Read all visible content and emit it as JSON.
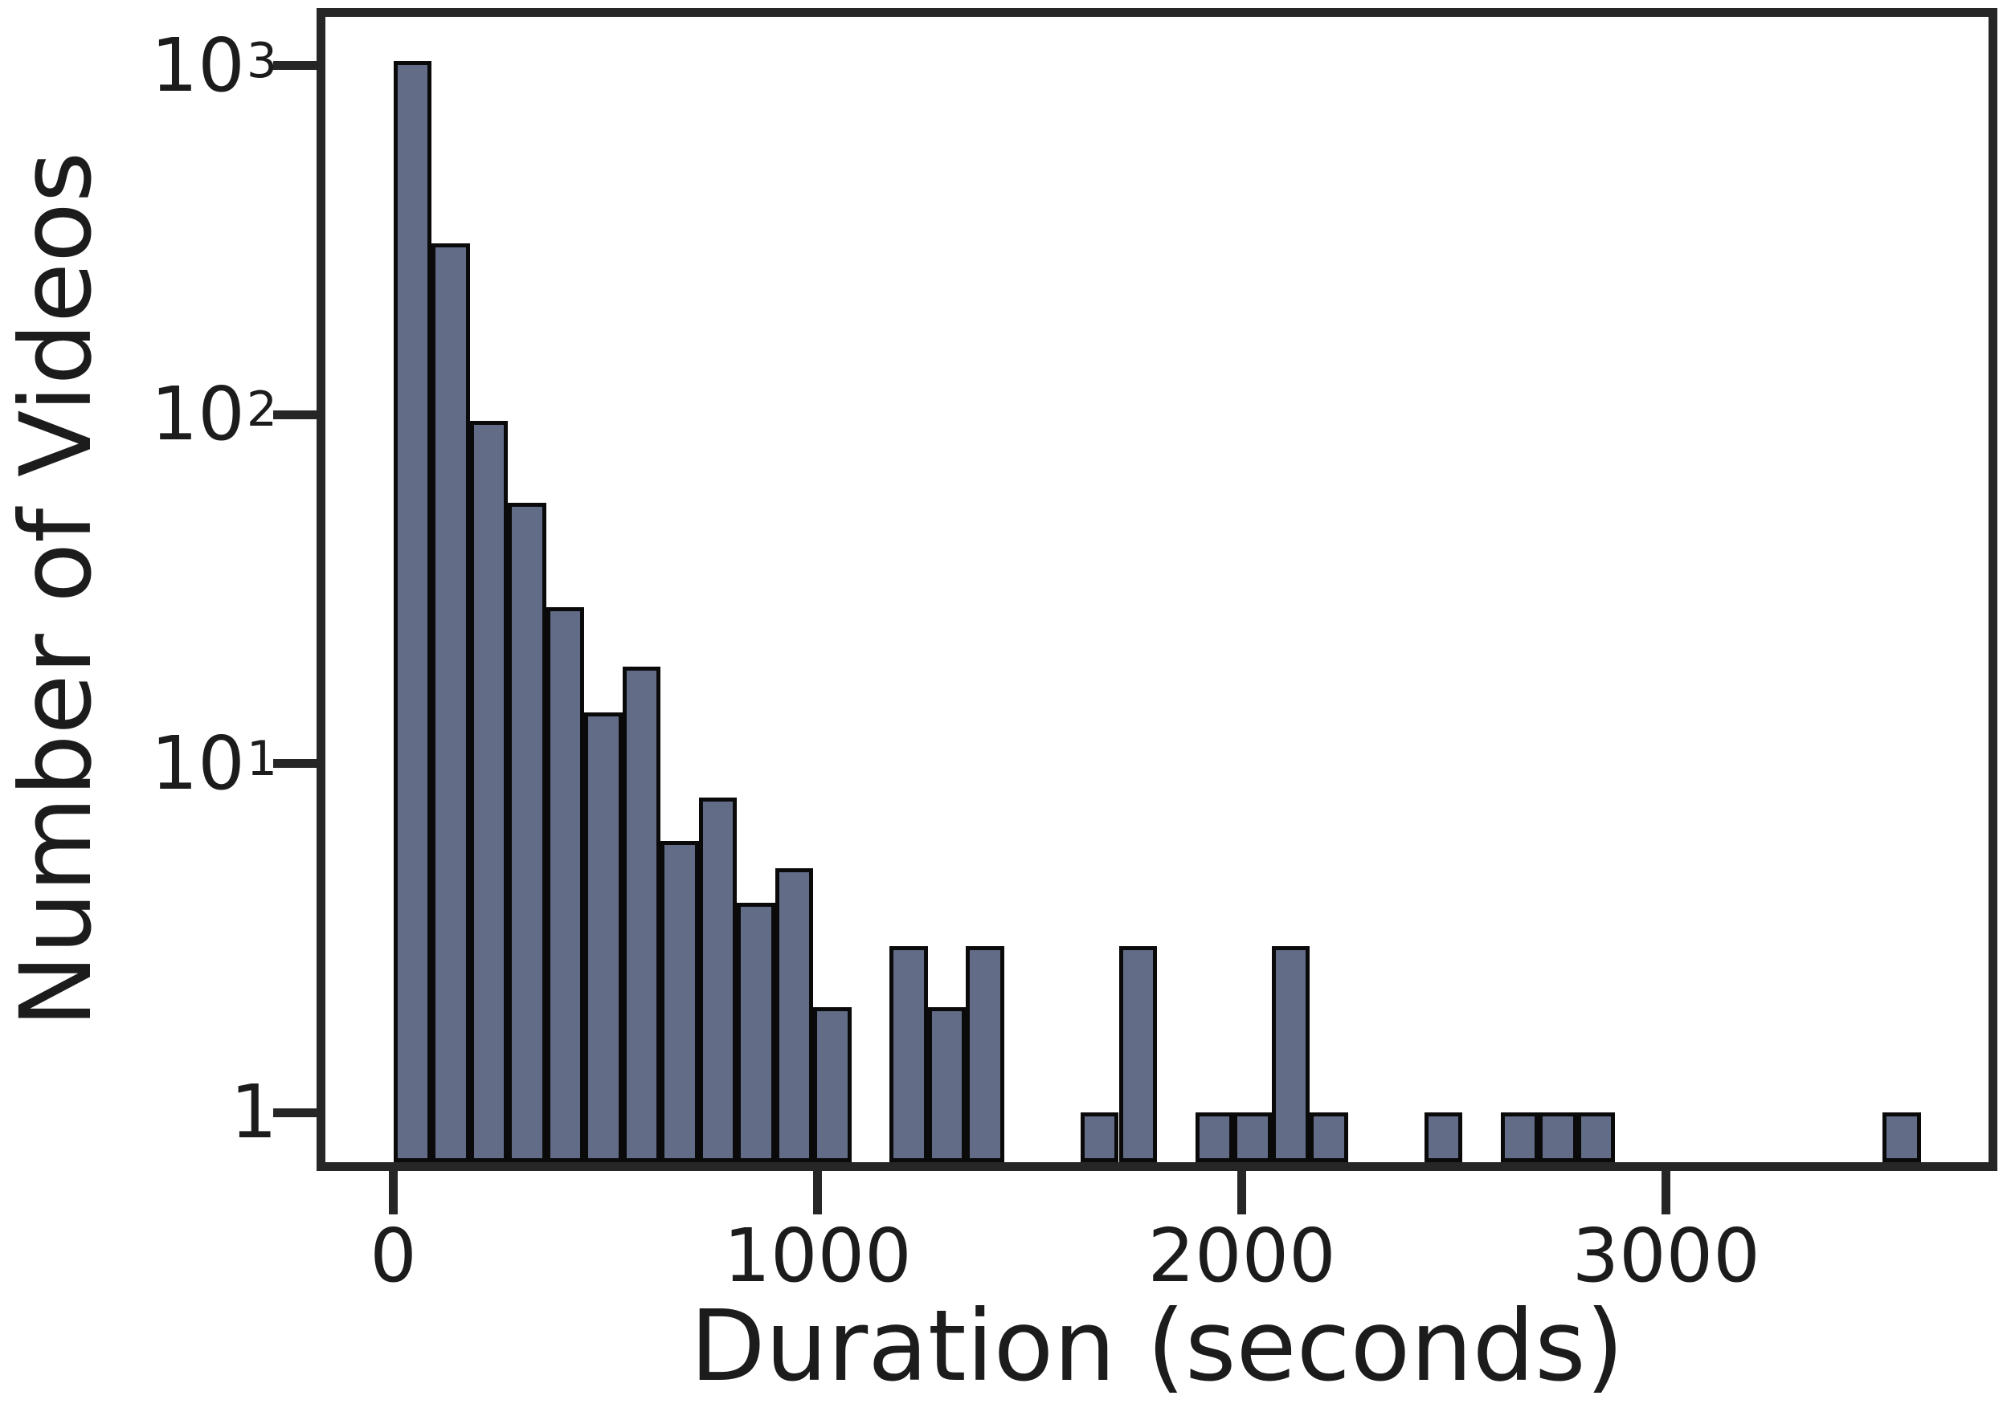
{
  "figure": {
    "background": "#ffffff"
  },
  "chart_data": {
    "type": "bar",
    "subtype": "histogram",
    "title": "",
    "xlabel": "Duration (seconds)",
    "ylabel": "Number of Videos",
    "yscale": "log",
    "grid": false,
    "legend": null,
    "bin_start": 0,
    "bin_width": 90,
    "counts": [
      1030,
      310,
      96,
      56,
      28,
      14,
      19,
      6,
      8,
      4,
      5,
      2,
      0,
      3,
      2,
      3,
      0,
      0,
      1,
      3,
      0,
      1,
      1,
      3,
      1,
      0,
      0,
      1,
      0,
      1,
      1,
      1,
      0,
      0,
      0,
      0,
      0,
      0,
      0,
      1
    ],
    "x_ticks": [
      {
        "value": 0,
        "label": "0"
      },
      {
        "value": 1000,
        "label": "1000"
      },
      {
        "value": 2000,
        "label": "2000"
      },
      {
        "value": 3000,
        "label": "3000"
      }
    ],
    "y_ticks": [
      {
        "value": 1,
        "base": "1",
        "exp": ""
      },
      {
        "value": 10,
        "base": "10",
        "exp": "1"
      },
      {
        "value": 100,
        "base": "10",
        "exp": "2"
      },
      {
        "value": 1000,
        "base": "10",
        "exp": "3"
      }
    ],
    "xlim": [
      -160,
      3760
    ],
    "ylim": [
      0.72,
      1380
    ],
    "colors": {
      "bar_fill": "#626c86",
      "bar_edge": "#0a0a0a",
      "axis": "#262626",
      "text": "#1c1c1c"
    }
  }
}
